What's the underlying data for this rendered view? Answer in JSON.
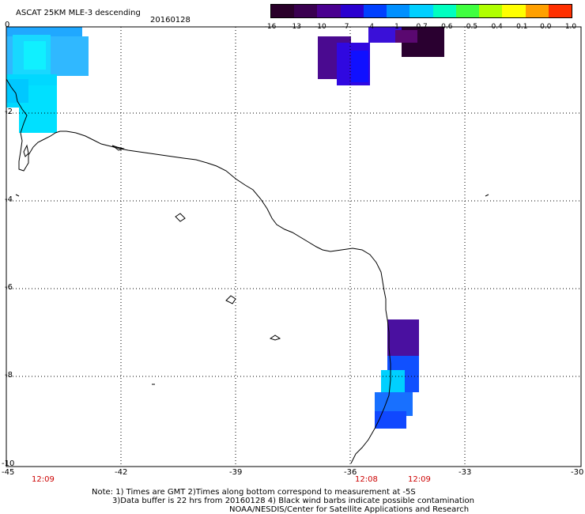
{
  "title": "ASCAT 25KM MLE-3 descending",
  "date": "20160128",
  "colorbar": {
    "labels": [
      "-16",
      "-13",
      "-10",
      "-7",
      "-4",
      "-1",
      "-0.7",
      "-0.6",
      "-0.5",
      "-0.4",
      "-0.1",
      "0.0",
      "1.0"
    ],
    "colors": [
      "#2a002a",
      "#3a0050",
      "#4a0090",
      "#2a00d0",
      "#0040ff",
      "#0090ff",
      "#00d0ff",
      "#00ffc0",
      "#40ff40",
      "#b0ff00",
      "#ffff00",
      "#ffa000",
      "#ff3000"
    ]
  },
  "axes": {
    "x_ticks": [
      "-45",
      "-42",
      "-39",
      "-36",
      "-33",
      "-30"
    ],
    "y_ticks": [
      "0",
      "-2",
      "-4",
      "-6",
      "-8",
      "-10"
    ]
  },
  "time_labels": [
    {
      "text": "12:09",
      "lon": -44.3
    },
    {
      "text": "12:08",
      "lon": -35.7
    },
    {
      "text": "12:09",
      "lon": -34.3
    }
  ],
  "notes": {
    "line1": "Note: 1) Times are GMT 2)Times along bottom correspond to measurement at -5S",
    "line2": "3)Data buffer is 22 hrs from 20160128 4) Black wind barbs indicate possible contamination",
    "line3": "NOAA/NESDIS/Center for Satellite Applications and Research"
  },
  "colors": {
    "tick_red": "#cc0000"
  }
}
